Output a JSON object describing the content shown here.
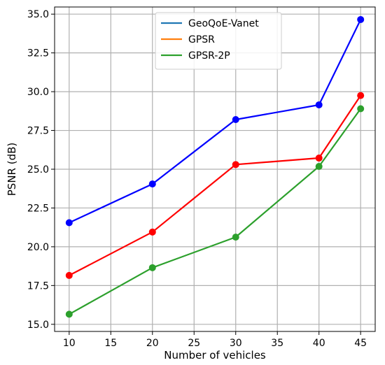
{
  "chart_data": {
    "type": "line",
    "title": "",
    "xlabel": "Number of vehicles",
    "ylabel": "PSNR (dB)",
    "xlim": [
      8.25,
      46.75
    ],
    "ylim": [
      14.54,
      35.46
    ],
    "xticks": [
      10,
      15,
      20,
      25,
      30,
      35,
      40,
      45
    ],
    "yticks": [
      15.0,
      17.5,
      20.0,
      22.5,
      25.0,
      27.5,
      30.0,
      32.5,
      35.0
    ],
    "grid": true,
    "legend_position": "top-center",
    "x": [
      10,
      20,
      30,
      40,
      45
    ],
    "series": [
      {
        "name": "GeoQoE-Vanet",
        "legend_color": "#1f77b4",
        "line_color": "#0000ff",
        "marker_color": "#0000ff",
        "values": [
          21.55,
          24.05,
          28.2,
          29.15,
          34.65
        ]
      },
      {
        "name": "GPSR",
        "legend_color": "#ff7f0e",
        "line_color": "#ff0000",
        "marker_color": "#ff0000",
        "values": [
          18.15,
          20.95,
          25.3,
          25.72,
          29.75
        ]
      },
      {
        "name": "GPSR-2P",
        "legend_color": "#2ca02c",
        "line_color": "#2ca02c",
        "marker_color": "#2ca02c",
        "values": [
          15.65,
          18.65,
          20.62,
          25.18,
          28.9
        ]
      }
    ]
  }
}
